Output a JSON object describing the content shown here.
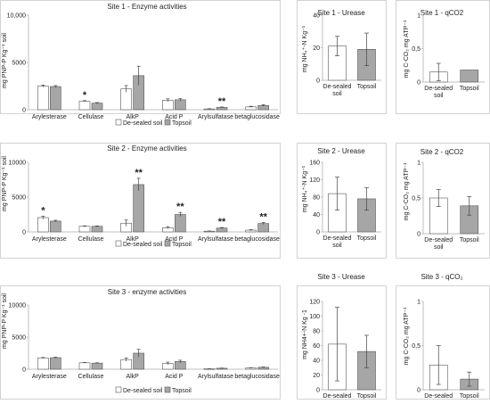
{
  "chart_data": [
    {
      "id": "s1_enz",
      "type": "bar",
      "title": "Site 1 - Enzyme activities",
      "ylabel": "mg PNP-P Kg⁻¹ soil",
      "ylim": [
        0,
        10000
      ],
      "yticks": [
        "0",
        "5000",
        "10,000"
      ],
      "ytick_values": [
        0,
        5000,
        10000
      ],
      "categories": [
        "Arylesterase",
        "Cellulase",
        "AlkP",
        "Acid P",
        "Arylsulfatase",
        "betaglucosidase"
      ],
      "series": [
        {
          "name": "De-sealed soil",
          "values": [
            2500,
            900,
            2200,
            1000,
            80,
            300
          ],
          "errors": [
            100,
            60,
            350,
            150,
            30,
            60
          ]
        },
        {
          "name": "Topsoil",
          "values": [
            2450,
            700,
            3600,
            1050,
            250,
            450
          ],
          "errors": [
            100,
            60,
            1000,
            120,
            40,
            80
          ]
        }
      ],
      "annotations": [
        {
          "category": 1,
          "series": 0,
          "text": "*"
        },
        {
          "category": 4,
          "series": 1,
          "text": "**"
        }
      ],
      "legend": [
        "De-sealed soil",
        "Topsoil"
      ]
    },
    {
      "id": "s1_ure",
      "type": "bar",
      "title": "Site 1 - Urease",
      "ylabel": "mg NH₄⁺-N  Kg⁻¹",
      "ylim": [
        0,
        40
      ],
      "yticks": [
        "0",
        "20",
        "40"
      ],
      "ytick_values": [
        0,
        20,
        40
      ],
      "categories": [
        "De-sealed soil",
        "Topsoil"
      ],
      "values": [
        21,
        19
      ],
      "errors": [
        6,
        10
      ]
    },
    {
      "id": "s1_qco2",
      "type": "bar",
      "title": "Site 1 - qCO2",
      "ylabel": "mg C-CO₂ mg ATP⁻¹",
      "ylim": [
        0,
        1
      ],
      "yticks": [
        "0",
        "0,5",
        "1"
      ],
      "ytick_values": [
        0,
        0.5,
        1
      ],
      "categories": [
        "De-sealed soil",
        "Topsoil"
      ],
      "values": [
        0.15,
        0.18
      ],
      "errors": [
        0.13,
        0
      ]
    },
    {
      "id": "s2_enz",
      "type": "bar",
      "title": "Site 2 - Enzyme activities",
      "ylabel": "mg PNP-P Kg⁻¹ soil",
      "ylim": [
        0,
        10000
      ],
      "yticks": [
        "0",
        "5000",
        "10000"
      ],
      "ytick_values": [
        0,
        5000,
        10000
      ],
      "categories": [
        "Arylesterase",
        "Cellulase",
        "AlkP",
        "Acid P",
        "Arylsulfatase",
        "betaglucosidase"
      ],
      "series": [
        {
          "name": "De-sealed soil",
          "values": [
            2050,
            800,
            1250,
            600,
            100,
            250
          ],
          "errors": [
            200,
            60,
            450,
            150,
            30,
            80
          ]
        },
        {
          "name": "Topsoil",
          "values": [
            1550,
            800,
            6800,
            2500,
            550,
            1200
          ],
          "errors": [
            120,
            60,
            900,
            300,
            80,
            150
          ]
        }
      ],
      "annotations": [
        {
          "category": 0,
          "series": 0,
          "text": "*"
        },
        {
          "category": 2,
          "series": 1,
          "text": "**"
        },
        {
          "category": 3,
          "series": 1,
          "text": "**"
        },
        {
          "category": 4,
          "series": 1,
          "text": "**"
        },
        {
          "category": 5,
          "series": 1,
          "text": "**"
        }
      ],
      "legend": [
        "De-sealed soil",
        "Topsoil"
      ]
    },
    {
      "id": "s2_ure",
      "type": "bar",
      "title": "Site 2 - Urease",
      "ylabel": "mg NH₄⁺-N  Kg⁻¹",
      "ylim": [
        0,
        160
      ],
      "yticks": [
        "0",
        "40",
        "80",
        "120",
        "160"
      ],
      "ytick_values": [
        0,
        40,
        80,
        120,
        160
      ],
      "categories": [
        "De-sealed soil",
        "Topsoil"
      ],
      "values": [
        88,
        76
      ],
      "errors": [
        38,
        26
      ]
    },
    {
      "id": "s2_qco2",
      "type": "bar",
      "title": "Site 2 - qCO2",
      "ylabel": "mg C-CO₂ mg ATP⁻¹",
      "ylim": [
        0,
        1
      ],
      "yticks": [
        "0",
        "0,5",
        "1"
      ],
      "ytick_values": [
        0,
        0.5,
        1
      ],
      "categories": [
        "De-sealed soil",
        "Topsoil"
      ],
      "values": [
        0.5,
        0.39
      ],
      "errors": [
        0.12,
        0.13
      ]
    },
    {
      "id": "s3_enz",
      "type": "bar",
      "title": "Site 3 - enzyme activities",
      "ylabel": "mg PNP-P Kg⁻¹ soil",
      "ylim": [
        0,
        10000
      ],
      "yticks": [
        "0",
        "5000",
        "10000"
      ],
      "ytick_values": [
        0,
        5000,
        10000
      ],
      "categories": [
        "Arylesterase",
        "Cellulase",
        "AlkP",
        "Acid P",
        "Arylsulfatase",
        "betaglucosidase"
      ],
      "series": [
        {
          "name": "De-sealed soil",
          "values": [
            1750,
            1000,
            1500,
            900,
            80,
            200
          ],
          "errors": [
            80,
            50,
            250,
            200,
            20,
            40
          ]
        },
        {
          "name": "Topsoil",
          "values": [
            1800,
            950,
            2500,
            1200,
            150,
            300
          ],
          "errors": [
            80,
            50,
            600,
            200,
            30,
            50
          ]
        }
      ],
      "annotations": [],
      "legend": [
        "De-sealed soil",
        "Topsoil"
      ]
    },
    {
      "id": "s3_ure",
      "type": "bar",
      "title": "Site 3 - Urease",
      "ylabel": "mg NH4+-N Kg -1",
      "ylim": [
        0,
        120
      ],
      "yticks": [
        "0",
        "20",
        "40",
        "60",
        "80",
        "100",
        "120"
      ],
      "ytick_values": [
        0,
        20,
        40,
        60,
        80,
        100,
        120
      ],
      "categories": [
        "De-sealed soil",
        "Topsoil"
      ],
      "values": [
        62,
        52
      ],
      "errors": [
        50,
        22
      ]
    },
    {
      "id": "s3_qco2",
      "type": "bar",
      "title": "Site 3 - qCO₂",
      "ylabel": "mg C-CO₂ mg ATP⁻¹",
      "ylim": [
        0,
        1
      ],
      "yticks": [
        "0",
        "0,5",
        "1"
      ],
      "ytick_values": [
        0,
        0.5,
        1
      ],
      "categories": [
        "De-sealed soil",
        "Topsoil"
      ],
      "values": [
        0.28,
        0.12
      ],
      "errors": [
        0.22,
        0.08
      ]
    }
  ],
  "colors": {
    "desealed": "#ffffff",
    "topsoil": "#a6a6a6",
    "axis": "#bfbfbf",
    "border": "#c8c8c8",
    "bar_stroke": "#555555"
  }
}
